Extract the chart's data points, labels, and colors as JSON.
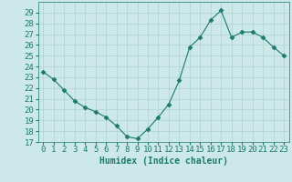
{
  "x": [
    0,
    1,
    2,
    3,
    4,
    5,
    6,
    7,
    8,
    9,
    10,
    11,
    12,
    13,
    14,
    15,
    16,
    17,
    18,
    19,
    20,
    21,
    22,
    23
  ],
  "y": [
    23.5,
    22.8,
    21.8,
    20.8,
    20.2,
    19.8,
    19.3,
    18.5,
    17.5,
    17.3,
    18.2,
    19.3,
    20.5,
    22.7,
    25.8,
    26.7,
    28.3,
    29.2,
    26.7,
    27.2,
    27.2,
    26.7,
    25.8,
    25.0
  ],
  "line_color": "#1a7a6e",
  "marker": "D",
  "marker_size": 2.5,
  "bg_color": "#cce8e8",
  "grid_color": "#b0d0d0",
  "xlabel": "Humidex (Indice chaleur)",
  "ylim": [
    17,
    30
  ],
  "xlim": [
    -0.5,
    23.5
  ],
  "yticks": [
    17,
    18,
    19,
    20,
    21,
    22,
    23,
    24,
    25,
    26,
    27,
    28,
    29
  ],
  "xticks": [
    0,
    1,
    2,
    3,
    4,
    5,
    6,
    7,
    8,
    9,
    10,
    11,
    12,
    13,
    14,
    15,
    16,
    17,
    18,
    19,
    20,
    21,
    22,
    23
  ],
  "xlabel_fontsize": 7,
  "tick_fontsize": 6.5
}
